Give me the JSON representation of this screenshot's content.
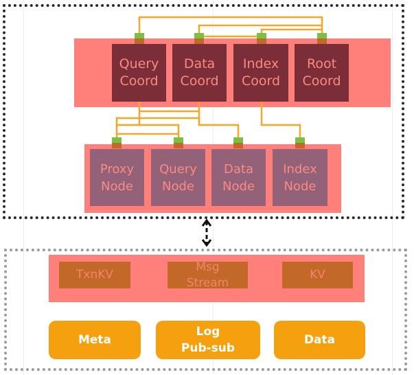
{
  "coordinators": [
    {
      "line1": "Query",
      "line2": "Coord"
    },
    {
      "line1": "Data",
      "line2": "Coord"
    },
    {
      "line1": "Index",
      "line2": "Coord"
    },
    {
      "line1": "Root",
      "line2": "Coord"
    }
  ],
  "nodes": [
    {
      "line1": "Proxy",
      "line2": "Node"
    },
    {
      "line1": "Query",
      "line2": "Node"
    },
    {
      "line1": "Data",
      "line2": "Node"
    },
    {
      "line1": "Index",
      "line2": "Node"
    }
  ],
  "storage": [
    {
      "line1": "TxnKV",
      "line2": ""
    },
    {
      "line1": "Msg",
      "line2": "Stream"
    },
    {
      "line1": "KV",
      "line2": ""
    }
  ],
  "categories": [
    {
      "line1": "Meta",
      "line2": ""
    },
    {
      "line1": "Log",
      "line2": "Pub-sub"
    },
    {
      "line1": "Data",
      "line2": ""
    }
  ],
  "colors": {
    "band": "#ff7f7b",
    "coord": "#7b2d38",
    "node": "#936279",
    "storage": "#c2692a",
    "category": "#f5a00f",
    "connector": "#f5a00f",
    "port": "#7ac143"
  }
}
